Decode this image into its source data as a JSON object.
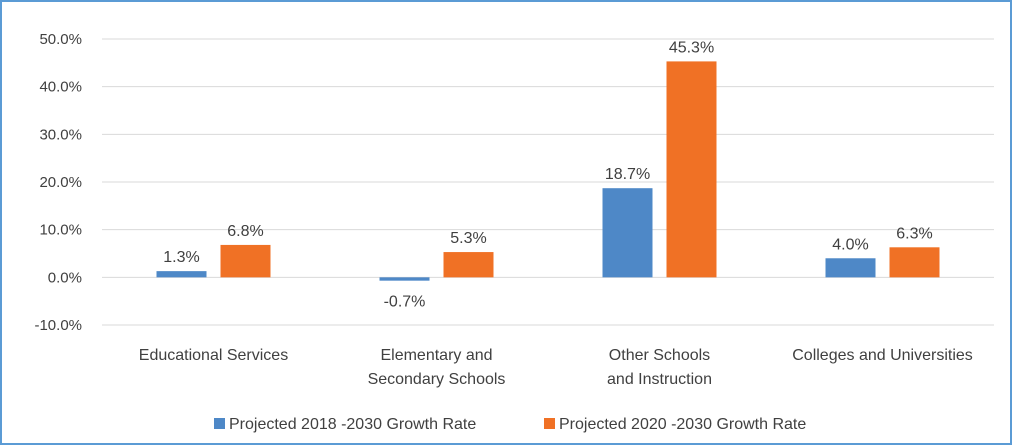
{
  "chart_data": {
    "type": "bar",
    "title": "",
    "xlabel": "",
    "ylabel": "",
    "categories": [
      [
        "Educational Services"
      ],
      [
        "Elementary and",
        "Secondary Schools"
      ],
      [
        "Other Schools",
        "and Instruction"
      ],
      [
        "Colleges and Universities"
      ]
    ],
    "series": [
      {
        "name": "Projected 2018 -2030 Growth Rate",
        "color": "#4e88c7",
        "values": [
          1.3,
          -0.7,
          18.7,
          4.0
        ]
      },
      {
        "name": "Projected 2020 -2030 Growth Rate",
        "color": "#f07125",
        "values": [
          6.8,
          5.3,
          45.3,
          6.3
        ]
      }
    ],
    "ylim": [
      -10,
      50
    ],
    "yticks": [
      -10,
      0,
      10,
      20,
      30,
      40,
      50
    ],
    "value_format": "percent_1dp",
    "grid": true,
    "legend_position": "bottom"
  }
}
